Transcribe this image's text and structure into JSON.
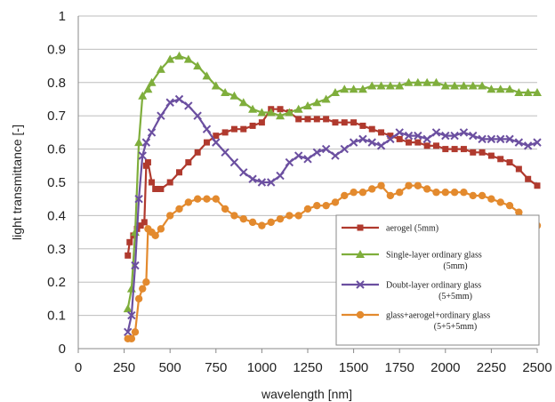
{
  "chart_data": {
    "type": "line",
    "xlabel": "wavelength  [nm]",
    "ylabel": "light transmittance  [-]",
    "xlim": [
      0,
      2500
    ],
    "ylim": [
      0,
      1
    ],
    "x_ticks": [
      "0",
      "250",
      "500",
      "750",
      "1000",
      "1250",
      "1500",
      "1750",
      "2000",
      "2250",
      "2500"
    ],
    "y_ticks": [
      "0",
      "0.1",
      "0.2",
      "0.3",
      "0.4",
      "0.5",
      "0.6",
      "0.7",
      "0.8",
      "0.9",
      "1"
    ],
    "grid": "horizontal",
    "legend_position": "lower-right",
    "series": [
      {
        "name": "aerogel (5mm)",
        "color": "#b03a2e",
        "marker": "square",
        "points": [
          [
            270,
            0.28
          ],
          [
            280,
            0.32
          ],
          [
            300,
            0.34
          ],
          [
            320,
            0.36
          ],
          [
            340,
            0.37
          ],
          [
            360,
            0.38
          ],
          [
            370,
            0.55
          ],
          [
            380,
            0.56
          ],
          [
            400,
            0.5
          ],
          [
            420,
            0.48
          ],
          [
            450,
            0.48
          ],
          [
            500,
            0.5
          ],
          [
            550,
            0.53
          ],
          [
            600,
            0.56
          ],
          [
            650,
            0.59
          ],
          [
            700,
            0.62
          ],
          [
            750,
            0.64
          ],
          [
            800,
            0.65
          ],
          [
            850,
            0.66
          ],
          [
            900,
            0.66
          ],
          [
            950,
            0.67
          ],
          [
            1000,
            0.68
          ],
          [
            1050,
            0.72
          ],
          [
            1100,
            0.72
          ],
          [
            1150,
            0.71
          ],
          [
            1200,
            0.69
          ],
          [
            1250,
            0.69
          ],
          [
            1300,
            0.69
          ],
          [
            1350,
            0.69
          ],
          [
            1400,
            0.68
          ],
          [
            1450,
            0.68
          ],
          [
            1500,
            0.68
          ],
          [
            1550,
            0.67
          ],
          [
            1600,
            0.66
          ],
          [
            1650,
            0.65
          ],
          [
            1700,
            0.64
          ],
          [
            1750,
            0.63
          ],
          [
            1800,
            0.62
          ],
          [
            1850,
            0.62
          ],
          [
            1900,
            0.61
          ],
          [
            1950,
            0.61
          ],
          [
            2000,
            0.6
          ],
          [
            2050,
            0.6
          ],
          [
            2100,
            0.6
          ],
          [
            2150,
            0.59
          ],
          [
            2200,
            0.59
          ],
          [
            2250,
            0.58
          ],
          [
            2300,
            0.57
          ],
          [
            2350,
            0.56
          ],
          [
            2400,
            0.54
          ],
          [
            2450,
            0.51
          ],
          [
            2500,
            0.49
          ]
        ]
      },
      {
        "name": "Single-layer ordinary glass (5mm)",
        "color": "#7fae3c",
        "marker": "triangle",
        "points": [
          [
            270,
            0.12
          ],
          [
            290,
            0.18
          ],
          [
            310,
            0.35
          ],
          [
            330,
            0.62
          ],
          [
            350,
            0.76
          ],
          [
            380,
            0.78
          ],
          [
            400,
            0.8
          ],
          [
            450,
            0.84
          ],
          [
            500,
            0.87
          ],
          [
            550,
            0.88
          ],
          [
            600,
            0.87
          ],
          [
            650,
            0.85
          ],
          [
            700,
            0.82
          ],
          [
            750,
            0.79
          ],
          [
            800,
            0.77
          ],
          [
            850,
            0.76
          ],
          [
            900,
            0.74
          ],
          [
            950,
            0.72
          ],
          [
            1000,
            0.71
          ],
          [
            1050,
            0.71
          ],
          [
            1100,
            0.7
          ],
          [
            1150,
            0.71
          ],
          [
            1200,
            0.72
          ],
          [
            1250,
            0.73
          ],
          [
            1300,
            0.74
          ],
          [
            1350,
            0.75
          ],
          [
            1400,
            0.77
          ],
          [
            1450,
            0.78
          ],
          [
            1500,
            0.78
          ],
          [
            1550,
            0.78
          ],
          [
            1600,
            0.79
          ],
          [
            1650,
            0.79
          ],
          [
            1700,
            0.79
          ],
          [
            1750,
            0.79
          ],
          [
            1800,
            0.8
          ],
          [
            1850,
            0.8
          ],
          [
            1900,
            0.8
          ],
          [
            1950,
            0.8
          ],
          [
            2000,
            0.79
          ],
          [
            2050,
            0.79
          ],
          [
            2100,
            0.79
          ],
          [
            2150,
            0.79
          ],
          [
            2200,
            0.79
          ],
          [
            2250,
            0.78
          ],
          [
            2300,
            0.78
          ],
          [
            2350,
            0.78
          ],
          [
            2400,
            0.77
          ],
          [
            2450,
            0.77
          ],
          [
            2500,
            0.77
          ]
        ]
      },
      {
        "name": "Doubt-layer ordinary glass (5+5mm)",
        "color": "#6b4fa0",
        "marker": "x",
        "points": [
          [
            270,
            0.05
          ],
          [
            290,
            0.1
          ],
          [
            310,
            0.25
          ],
          [
            330,
            0.45
          ],
          [
            350,
            0.58
          ],
          [
            370,
            0.62
          ],
          [
            400,
            0.65
          ],
          [
            450,
            0.7
          ],
          [
            500,
            0.74
          ],
          [
            550,
            0.75
          ],
          [
            600,
            0.73
          ],
          [
            650,
            0.7
          ],
          [
            700,
            0.66
          ],
          [
            750,
            0.62
          ],
          [
            800,
            0.59
          ],
          [
            850,
            0.56
          ],
          [
            900,
            0.53
          ],
          [
            950,
            0.51
          ],
          [
            1000,
            0.5
          ],
          [
            1050,
            0.5
          ],
          [
            1100,
            0.52
          ],
          [
            1150,
            0.56
          ],
          [
            1200,
            0.58
          ],
          [
            1250,
            0.57
          ],
          [
            1300,
            0.59
          ],
          [
            1350,
            0.6
          ],
          [
            1400,
            0.58
          ],
          [
            1450,
            0.6
          ],
          [
            1500,
            0.62
          ],
          [
            1550,
            0.63
          ],
          [
            1600,
            0.62
          ],
          [
            1650,
            0.61
          ],
          [
            1700,
            0.63
          ],
          [
            1750,
            0.65
          ],
          [
            1800,
            0.64
          ],
          [
            1850,
            0.64
          ],
          [
            1900,
            0.63
          ],
          [
            1950,
            0.65
          ],
          [
            2000,
            0.64
          ],
          [
            2050,
            0.64
          ],
          [
            2100,
            0.65
          ],
          [
            2150,
            0.64
          ],
          [
            2200,
            0.63
          ],
          [
            2250,
            0.63
          ],
          [
            2300,
            0.63
          ],
          [
            2350,
            0.63
          ],
          [
            2400,
            0.62
          ],
          [
            2450,
            0.61
          ],
          [
            2500,
            0.62
          ]
        ]
      },
      {
        "name": "glass+aerogel+ordinary glass (5+5+5mm)",
        "color": "#e38a2e",
        "marker": "circle",
        "points": [
          [
            270,
            0.03
          ],
          [
            290,
            0.03
          ],
          [
            310,
            0.05
          ],
          [
            330,
            0.15
          ],
          [
            350,
            0.18
          ],
          [
            370,
            0.2
          ],
          [
            380,
            0.36
          ],
          [
            400,
            0.35
          ],
          [
            420,
            0.34
          ],
          [
            450,
            0.36
          ],
          [
            500,
            0.4
          ],
          [
            550,
            0.42
          ],
          [
            600,
            0.44
          ],
          [
            650,
            0.45
          ],
          [
            700,
            0.45
          ],
          [
            750,
            0.45
          ],
          [
            800,
            0.42
          ],
          [
            850,
            0.4
          ],
          [
            900,
            0.39
          ],
          [
            950,
            0.38
          ],
          [
            1000,
            0.37
          ],
          [
            1050,
            0.38
          ],
          [
            1100,
            0.39
          ],
          [
            1150,
            0.4
          ],
          [
            1200,
            0.4
          ],
          [
            1250,
            0.42
          ],
          [
            1300,
            0.43
          ],
          [
            1350,
            0.43
          ],
          [
            1400,
            0.44
          ],
          [
            1450,
            0.46
          ],
          [
            1500,
            0.47
          ],
          [
            1550,
            0.47
          ],
          [
            1600,
            0.48
          ],
          [
            1650,
            0.49
          ],
          [
            1700,
            0.46
          ],
          [
            1750,
            0.47
          ],
          [
            1800,
            0.49
          ],
          [
            1850,
            0.49
          ],
          [
            1900,
            0.48
          ],
          [
            1950,
            0.47
          ],
          [
            2000,
            0.47
          ],
          [
            2050,
            0.47
          ],
          [
            2100,
            0.47
          ],
          [
            2150,
            0.46
          ],
          [
            2200,
            0.46
          ],
          [
            2250,
            0.45
          ],
          [
            2300,
            0.44
          ],
          [
            2350,
            0.43
          ],
          [
            2400,
            0.41
          ],
          [
            2450,
            0.38
          ],
          [
            2500,
            0.37
          ]
        ]
      }
    ]
  },
  "legend": {
    "entries": [
      {
        "line1": "aerogel (5mm)",
        "line2": ""
      },
      {
        "line1": "Single-layer ordinary glass",
        "line2": "(5mm)"
      },
      {
        "line1": "Doubt-layer ordinary glass",
        "line2": "(5+5mm)"
      },
      {
        "line1": "glass+aerogel+ordinary glass",
        "line2": "(5+5+5mm)"
      }
    ]
  }
}
